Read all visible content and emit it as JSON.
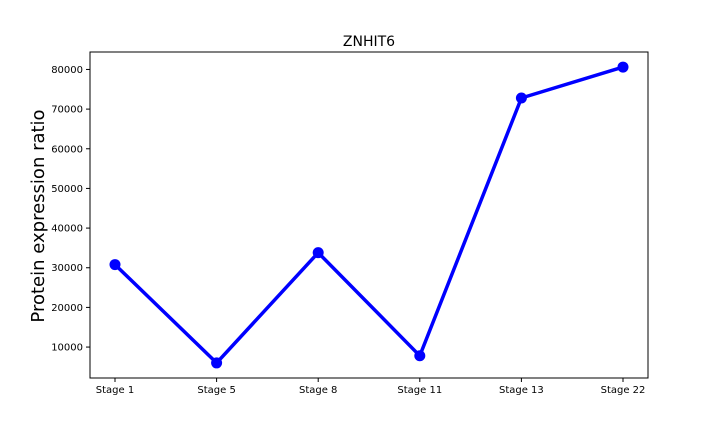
{
  "chart_data": {
    "type": "line",
    "title": "ZNHIT6",
    "xlabel": "",
    "ylabel": "Protein expression ratio",
    "categories": [
      "Stage 1",
      "Stage 5",
      "Stage 8",
      "Stage 11",
      "Stage 13",
      "Stage 22"
    ],
    "series": [
      {
        "values": [
          30800,
          6000,
          33800,
          7800,
          72800,
          80600
        ]
      }
    ],
    "yticks": [
      10000,
      20000,
      30000,
      40000,
      50000,
      60000,
      70000,
      80000
    ],
    "ylim": [
      2200,
      84400
    ],
    "grid": false,
    "line_color": "#0000ff"
  }
}
